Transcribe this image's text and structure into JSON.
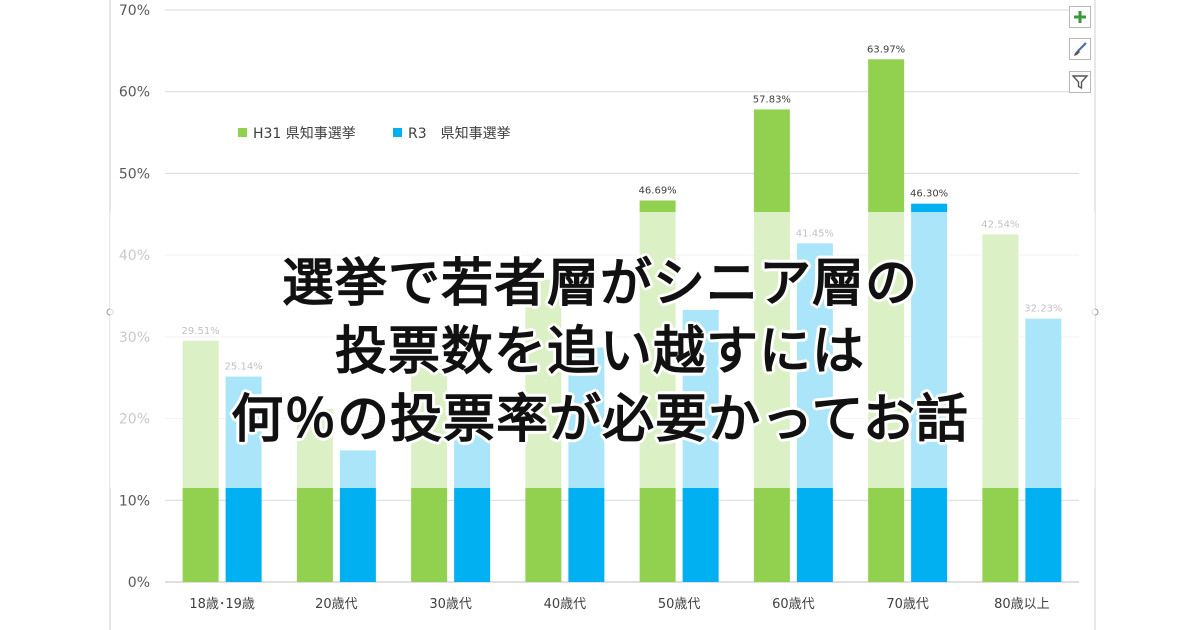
{
  "chart_data": {
    "type": "bar",
    "categories": [
      "18歳･19歳",
      "20歳代",
      "30歳代",
      "40歳代",
      "50歳代",
      "60歳代",
      "70歳代",
      "80歳以上"
    ],
    "series": [
      {
        "name": "H31 県知事選挙",
        "color": "#92d050",
        "values": [
          29.51,
          21.2,
          26.5,
          37.0,
          46.69,
          57.83,
          63.97,
          42.54
        ],
        "labels": [
          "29.51%",
          "",
          "",
          "",
          "46.69%",
          "57.83%",
          "63.97%",
          "42.54%"
        ]
      },
      {
        "name": "R3　県知事選挙",
        "color": "#00b0f0",
        "values": [
          25.14,
          16.1,
          21.2,
          28.7,
          33.3,
          41.45,
          46.3,
          32.23
        ],
        "labels": [
          "25.14%",
          "",
          "",
          "",
          "",
          "41.45%",
          "46.30%",
          "32.23%"
        ]
      }
    ],
    "yticks": [
      "0%",
      "10%",
      "20%",
      "30%",
      "40%",
      "50%",
      "60%",
      "70%"
    ],
    "ylim": [
      0,
      70
    ],
    "grid": true,
    "legend": "top-left"
  },
  "headline": {
    "line1": "選挙で若者層がシニア層の",
    "line2": "投票数を追い越すには",
    "line3": "何％の投票率が必要かってお話"
  },
  "tools": {
    "add_icon": "plus-icon",
    "style_icon": "brush-icon",
    "filter_icon": "filter-icon",
    "add_color": "#3a9a3a"
  }
}
